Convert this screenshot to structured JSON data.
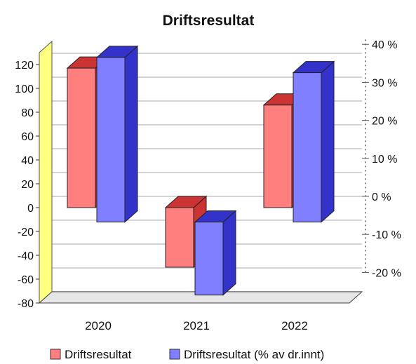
{
  "chart_data": {
    "type": "bar",
    "title": "Driftsresultat",
    "categories": [
      "2020",
      "2021",
      "2022"
    ],
    "series": [
      {
        "name": "Driftsresultat",
        "axis": "left",
        "values": [
          117,
          -50,
          86
        ],
        "color": "#ff7f7f"
      },
      {
        "name": "Driftsresultat (% av dr.innt)",
        "axis": "right",
        "values": [
          39.5,
          -23,
          35.5
        ],
        "color": "#7f7fff"
      }
    ],
    "y_left": {
      "ticks": [
        -80,
        -60,
        -40,
        -20,
        0,
        20,
        40,
        60,
        80,
        100,
        120
      ],
      "tick_labels": [
        "-80",
        "-60",
        "-40",
        "-20",
        "0",
        "20",
        "40",
        "60",
        "80",
        "100",
        "120"
      ]
    },
    "y_right": {
      "ticks": [
        -20,
        -10,
        0,
        10,
        20,
        30,
        40
      ],
      "tick_labels": [
        "-20 %",
        "-10 %",
        "0 %",
        "10 %",
        "20 %",
        "30 %",
        "40 %"
      ]
    },
    "grid": true,
    "legend": "bottom",
    "three_d": true,
    "colors": {
      "wall": "#ffff80",
      "bar1_side": "#cc3333",
      "bar2_side": "#3333cc"
    }
  }
}
